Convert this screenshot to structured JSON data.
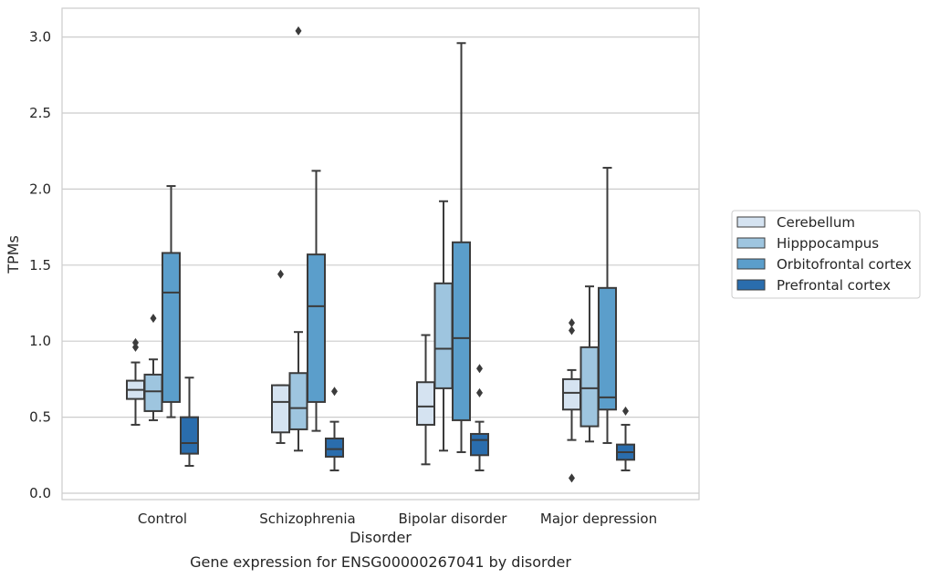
{
  "chart_data": {
    "type": "box",
    "title": "",
    "caption": "Gene expression for ENSG00000267041 by disorder",
    "xlabel": "Disorder",
    "ylabel": "TPMs",
    "ylim": [
      -0.04,
      3.2
    ],
    "yticks": [
      0.0,
      0.5,
      1.0,
      1.5,
      2.0,
      2.5,
      3.0
    ],
    "ytick_labels": [
      "0.0",
      "0.5",
      "1.0",
      "1.5",
      "2.0",
      "2.5",
      "3.0"
    ],
    "grid": "horizontal",
    "legend_position": "right",
    "categories": [
      "Control",
      "Schizophrenia",
      "Bipolar disorder",
      "Major depression"
    ],
    "series": [
      {
        "name": "Cerebellum",
        "color": "#d5e3f1",
        "boxes": [
          {
            "whislo": 0.45,
            "q1": 0.62,
            "med": 0.68,
            "q3": 0.74,
            "whishi": 0.86,
            "fliers": [
              0.96,
              0.99
            ]
          },
          {
            "whislo": 0.33,
            "q1": 0.4,
            "med": 0.6,
            "q3": 0.71,
            "whishi": 0.71,
            "fliers": [
              1.44
            ]
          },
          {
            "whislo": 0.19,
            "q1": 0.45,
            "med": 0.57,
            "q3": 0.73,
            "whishi": 1.04,
            "fliers": []
          },
          {
            "whislo": 0.35,
            "q1": 0.55,
            "med": 0.66,
            "q3": 0.75,
            "whishi": 0.81,
            "fliers": [
              0.1,
              1.07,
              1.12
            ]
          }
        ]
      },
      {
        "name": "Hipppocampus",
        "color": "#9ec5df",
        "boxes": [
          {
            "whislo": 0.48,
            "q1": 0.54,
            "med": 0.67,
            "q3": 0.78,
            "whishi": 0.88,
            "fliers": [
              1.15
            ]
          },
          {
            "whislo": 0.28,
            "q1": 0.42,
            "med": 0.56,
            "q3": 0.79,
            "whishi": 1.06,
            "fliers": [
              3.04
            ]
          },
          {
            "whislo": 0.28,
            "q1": 0.69,
            "med": 0.95,
            "q3": 1.38,
            "whishi": 1.92,
            "fliers": []
          },
          {
            "whislo": 0.34,
            "q1": 0.44,
            "med": 0.69,
            "q3": 0.96,
            "whishi": 1.36,
            "fliers": []
          }
        ]
      },
      {
        "name": "Orbitofrontal cortex",
        "color": "#5b9ecb",
        "boxes": [
          {
            "whislo": 0.5,
            "q1": 0.6,
            "med": 1.32,
            "q3": 1.58,
            "whishi": 2.02,
            "fliers": []
          },
          {
            "whislo": 0.41,
            "q1": 0.6,
            "med": 1.23,
            "q3": 1.57,
            "whishi": 2.12,
            "fliers": []
          },
          {
            "whislo": 0.27,
            "q1": 0.48,
            "med": 1.02,
            "q3": 1.65,
            "whishi": 2.96,
            "fliers": []
          },
          {
            "whislo": 0.33,
            "q1": 0.55,
            "med": 0.63,
            "q3": 1.35,
            "whishi": 2.14,
            "fliers": []
          }
        ]
      },
      {
        "name": "Prefrontal cortex",
        "color": "#2a6dad",
        "boxes": [
          {
            "whislo": 0.18,
            "q1": 0.26,
            "med": 0.33,
            "q3": 0.5,
            "whishi": 0.76,
            "fliers": []
          },
          {
            "whislo": 0.15,
            "q1": 0.24,
            "med": 0.29,
            "q3": 0.36,
            "whishi": 0.47,
            "fliers": [
              0.67
            ]
          },
          {
            "whislo": 0.15,
            "q1": 0.25,
            "med": 0.35,
            "q3": 0.39,
            "whishi": 0.47,
            "fliers": [
              0.66,
              0.82
            ]
          },
          {
            "whislo": 0.15,
            "q1": 0.22,
            "med": 0.27,
            "q3": 0.32,
            "whishi": 0.45,
            "fliers": [
              0.54
            ]
          }
        ]
      }
    ]
  }
}
